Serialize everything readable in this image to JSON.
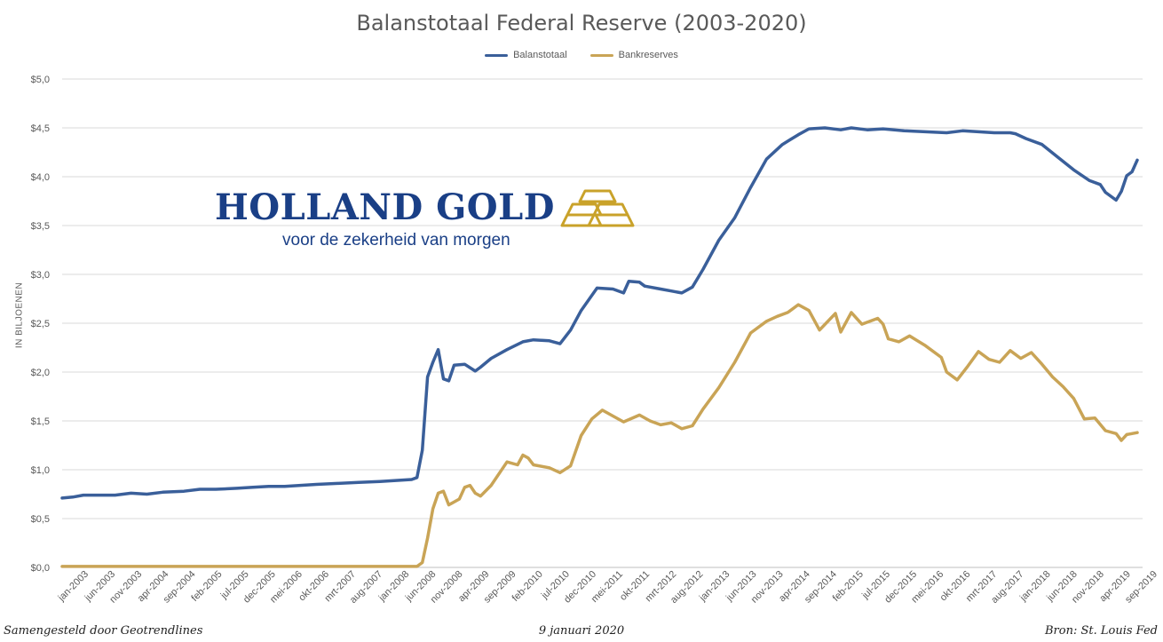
{
  "chart_data": {
    "type": "line",
    "title": "Balanstotaal Federal Reserve (2003-2020)",
    "ylabel": "IN BILJOENEN",
    "ylim": [
      0,
      5
    ],
    "yticks": [
      "$0,0",
      "$0,5",
      "$1,0",
      "$1,5",
      "$2,0",
      "$2,5",
      "$3,0",
      "$3,5",
      "$4,0",
      "$4,5",
      "$5,0"
    ],
    "grid": true,
    "legend_position": "top-center",
    "x_start": "2003-01",
    "x_end": "2020-01",
    "xticks": [
      "jan-2003",
      "jun-2003",
      "nov-2003",
      "apr-2004",
      "sep-2004",
      "feb-2005",
      "jul-2005",
      "dec-2005",
      "mei-2006",
      "okt-2006",
      "mrt-2007",
      "aug-2007",
      "jan-2008",
      "jun-2008",
      "nov-2008",
      "apr-2009",
      "sep-2009",
      "feb-2010",
      "jul-2010",
      "dec-2010",
      "mei-2011",
      "okt-2011",
      "mrt-2012",
      "aug-2012",
      "jan-2013",
      "jun-2013",
      "nov-2013",
      "apr-2014",
      "sep-2014",
      "feb-2015",
      "jul-2015",
      "dec-2015",
      "mei-2016",
      "okt-2016",
      "mrt-2017",
      "aug-2017",
      "jan-2018",
      "jun-2018",
      "nov-2018",
      "apr-2019",
      "sep-2019"
    ],
    "series": [
      {
        "name": "Balanstotaal",
        "color": "#3a5f9a",
        "points": [
          [
            "2003-01",
            0.71
          ],
          [
            "2003-03",
            0.72
          ],
          [
            "2003-05",
            0.74
          ],
          [
            "2003-08",
            0.74
          ],
          [
            "2003-11",
            0.74
          ],
          [
            "2004-02",
            0.76
          ],
          [
            "2004-05",
            0.75
          ],
          [
            "2004-08",
            0.77
          ],
          [
            "2004-12",
            0.78
          ],
          [
            "2005-03",
            0.8
          ],
          [
            "2005-06",
            0.8
          ],
          [
            "2005-10",
            0.81
          ],
          [
            "2006-01",
            0.82
          ],
          [
            "2006-04",
            0.83
          ],
          [
            "2006-07",
            0.83
          ],
          [
            "2006-10",
            0.84
          ],
          [
            "2007-01",
            0.85
          ],
          [
            "2007-05",
            0.86
          ],
          [
            "2007-09",
            0.87
          ],
          [
            "2008-01",
            0.88
          ],
          [
            "2008-04",
            0.89
          ],
          [
            "2008-07",
            0.9
          ],
          [
            "2008-08",
            0.92
          ],
          [
            "2008-09",
            1.2
          ],
          [
            "2008-10",
            1.95
          ],
          [
            "2008-11",
            2.1
          ],
          [
            "2008-12",
            2.23
          ],
          [
            "2009-01",
            1.93
          ],
          [
            "2009-02",
            1.91
          ],
          [
            "2009-03",
            2.07
          ],
          [
            "2009-05",
            2.08
          ],
          [
            "2009-07",
            2.01
          ],
          [
            "2009-08",
            2.05
          ],
          [
            "2009-10",
            2.14
          ],
          [
            "2010-01",
            2.23
          ],
          [
            "2010-04",
            2.31
          ],
          [
            "2010-06",
            2.33
          ],
          [
            "2010-09",
            2.32
          ],
          [
            "2010-11",
            2.29
          ],
          [
            "2011-01",
            2.43
          ],
          [
            "2011-03",
            2.63
          ],
          [
            "2011-06",
            2.86
          ],
          [
            "2011-09",
            2.85
          ],
          [
            "2011-11",
            2.81
          ],
          [
            "2011-12",
            2.93
          ],
          [
            "2012-02",
            2.92
          ],
          [
            "2012-03",
            2.88
          ],
          [
            "2012-06",
            2.85
          ],
          [
            "2012-08",
            2.83
          ],
          [
            "2012-10",
            2.81
          ],
          [
            "2012-12",
            2.87
          ],
          [
            "2013-02",
            3.05
          ],
          [
            "2013-05",
            3.35
          ],
          [
            "2013-08",
            3.58
          ],
          [
            "2013-11",
            3.89
          ],
          [
            "2014-02",
            4.18
          ],
          [
            "2014-05",
            4.33
          ],
          [
            "2014-08",
            4.43
          ],
          [
            "2014-10",
            4.49
          ],
          [
            "2015-01",
            4.5
          ],
          [
            "2015-04",
            4.48
          ],
          [
            "2015-06",
            4.5
          ],
          [
            "2015-09",
            4.48
          ],
          [
            "2015-12",
            4.49
          ],
          [
            "2016-04",
            4.47
          ],
          [
            "2016-08",
            4.46
          ],
          [
            "2016-12",
            4.45
          ],
          [
            "2017-03",
            4.47
          ],
          [
            "2017-06",
            4.46
          ],
          [
            "2017-09",
            4.45
          ],
          [
            "2017-12",
            4.45
          ],
          [
            "2018-01",
            4.44
          ],
          [
            "2018-03",
            4.39
          ],
          [
            "2018-06",
            4.33
          ],
          [
            "2018-09",
            4.2
          ],
          [
            "2018-12",
            4.07
          ],
          [
            "2019-03",
            3.96
          ],
          [
            "2019-05",
            3.92
          ],
          [
            "2019-06",
            3.84
          ],
          [
            "2019-08",
            3.76
          ],
          [
            "2019-09",
            3.85
          ],
          [
            "2019-10",
            4.01
          ],
          [
            "2019-11",
            4.05
          ],
          [
            "2019-12",
            4.17
          ]
        ]
      },
      {
        "name": "Bankreserves",
        "color": "#c9a456",
        "points": [
          [
            "2003-01",
            0.01
          ],
          [
            "2008-08",
            0.01
          ],
          [
            "2008-09",
            0.05
          ],
          [
            "2008-10",
            0.3
          ],
          [
            "2008-11",
            0.6
          ],
          [
            "2008-12",
            0.76
          ],
          [
            "2009-01",
            0.78
          ],
          [
            "2009-02",
            0.64
          ],
          [
            "2009-04",
            0.7
          ],
          [
            "2009-05",
            0.82
          ],
          [
            "2009-06",
            0.84
          ],
          [
            "2009-07",
            0.76
          ],
          [
            "2009-08",
            0.73
          ],
          [
            "2009-10",
            0.84
          ],
          [
            "2010-01",
            1.08
          ],
          [
            "2010-03",
            1.05
          ],
          [
            "2010-04",
            1.15
          ],
          [
            "2010-05",
            1.12
          ],
          [
            "2010-06",
            1.05
          ],
          [
            "2010-09",
            1.02
          ],
          [
            "2010-11",
            0.97
          ],
          [
            "2011-01",
            1.04
          ],
          [
            "2011-03",
            1.35
          ],
          [
            "2011-05",
            1.52
          ],
          [
            "2011-07",
            1.61
          ],
          [
            "2011-09",
            1.55
          ],
          [
            "2011-11",
            1.49
          ],
          [
            "2012-02",
            1.56
          ],
          [
            "2012-04",
            1.5
          ],
          [
            "2012-06",
            1.46
          ],
          [
            "2012-08",
            1.48
          ],
          [
            "2012-10",
            1.42
          ],
          [
            "2012-12",
            1.45
          ],
          [
            "2013-02",
            1.62
          ],
          [
            "2013-05",
            1.84
          ],
          [
            "2013-08",
            2.1
          ],
          [
            "2013-11",
            2.4
          ],
          [
            "2014-02",
            2.52
          ],
          [
            "2014-04",
            2.57
          ],
          [
            "2014-06",
            2.61
          ],
          [
            "2014-08",
            2.69
          ],
          [
            "2014-10",
            2.63
          ],
          [
            "2014-12",
            2.43
          ],
          [
            "2015-03",
            2.6
          ],
          [
            "2015-04",
            2.41
          ],
          [
            "2015-06",
            2.61
          ],
          [
            "2015-08",
            2.49
          ],
          [
            "2015-11",
            2.55
          ],
          [
            "2015-12",
            2.49
          ],
          [
            "2016-01",
            2.34
          ],
          [
            "2016-03",
            2.31
          ],
          [
            "2016-05",
            2.37
          ],
          [
            "2016-08",
            2.27
          ],
          [
            "2016-11",
            2.15
          ],
          [
            "2016-12",
            2.0
          ],
          [
            "2017-02",
            1.92
          ],
          [
            "2017-04",
            2.06
          ],
          [
            "2017-06",
            2.21
          ],
          [
            "2017-08",
            2.13
          ],
          [
            "2017-10",
            2.1
          ],
          [
            "2017-12",
            2.22
          ],
          [
            "2018-02",
            2.14
          ],
          [
            "2018-04",
            2.2
          ],
          [
            "2018-06",
            2.08
          ],
          [
            "2018-08",
            1.95
          ],
          [
            "2018-10",
            1.85
          ],
          [
            "2018-12",
            1.73
          ],
          [
            "2019-02",
            1.52
          ],
          [
            "2019-04",
            1.53
          ],
          [
            "2019-06",
            1.4
          ],
          [
            "2019-08",
            1.37
          ],
          [
            "2019-09",
            1.3
          ],
          [
            "2019-10",
            1.36
          ],
          [
            "2019-12",
            1.38
          ]
        ]
      }
    ]
  },
  "footer": {
    "left": "Samengesteld door Geotrendlines",
    "center": "9 januari 2020",
    "right": "Bron: St. Louis Fed"
  },
  "logo": {
    "name": "HOLLAND GOLD",
    "tagline": "voor de zekerheid van morgen",
    "name_color": "#1a3f86",
    "mark_color": "#c9a22a"
  }
}
